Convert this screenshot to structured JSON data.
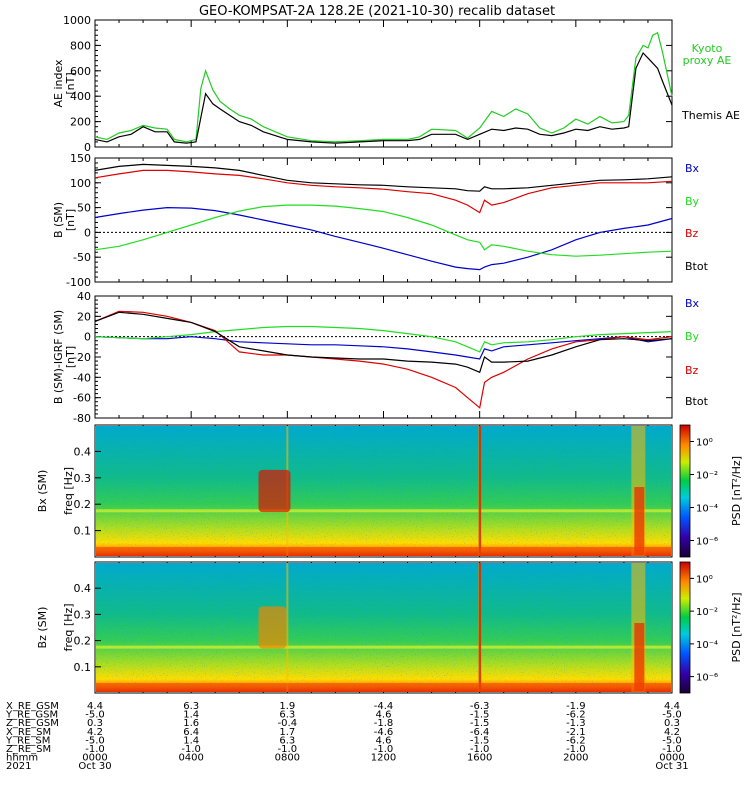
{
  "title": "GEO-KOMPSAT-2A 128.2E (2021-10-30) recalib dataset",
  "colors": {
    "bx": "#0000cc",
    "by": "#22dd22",
    "bz": "#dd0000",
    "btot": "#000000",
    "kyoto": "#22cc22",
    "themis": "#000000"
  },
  "ephemeris": {
    "labels": [
      "X_RE_GSM",
      "Y_RE_GSM",
      "Z_RE_GSM",
      "X_RE_SM",
      "Y_RE_SM",
      "Z_RE_SM",
      "hhmm",
      "2021"
    ],
    "rows": [
      [
        "4.4",
        "6.3",
        "1.9",
        "-4.4",
        "-6.3",
        "-1.9",
        "4.4"
      ],
      [
        "-5.0",
        "1.4",
        "6.3",
        "4.6",
        "-1.5",
        "-6.2",
        "-5.0"
      ],
      [
        "0.3",
        "1.6",
        "-0.4",
        "-1.8",
        "-1.5",
        "-1.3",
        "0.3"
      ],
      [
        "4.2",
        "6.4",
        "1.7",
        "-4.6",
        "-6.4",
        "-2.1",
        "4.2"
      ],
      [
        "-5.0",
        "1.4",
        "6.3",
        "4.6",
        "-1.5",
        "-6.2",
        "-5.0"
      ],
      [
        "-1.0",
        "-1.0",
        "-1.0",
        "-1.0",
        "-1.0",
        "-1.0",
        "-1.0"
      ],
      [
        "0000",
        "0400",
        "0800",
        "1200",
        "1600",
        "2000",
        "0000"
      ]
    ],
    "dates": [
      "Oct 30",
      "Oct 31"
    ]
  },
  "chart_data": [
    {
      "type": "line",
      "ylabel": "AE index",
      "yunit": "[nT]",
      "ylim": [
        0,
        1000
      ],
      "yticks": [
        "0",
        "200",
        "400",
        "600",
        "800",
        "1000"
      ],
      "xlim_hours": [
        0,
        24
      ],
      "series": [
        {
          "name": "Kyoto proxy AE",
          "x": [
            0,
            0.5,
            1,
            1.5,
            2,
            2.5,
            3,
            3.3,
            3.8,
            4.2,
            4.4,
            4.6,
            4.9,
            5.2,
            5.6,
            6,
            6.5,
            7,
            8,
            9,
            10,
            11,
            12,
            13,
            13.5,
            14,
            15,
            15.5,
            16,
            16.5,
            17,
            17.5,
            18,
            18.5,
            19,
            19.5,
            20,
            20.5,
            21,
            21.5,
            22,
            22.2,
            22.5,
            22.8,
            23,
            23.2,
            23.4,
            23.6,
            24
          ],
          "y": [
            80,
            60,
            110,
            130,
            170,
            150,
            140,
            60,
            40,
            60,
            460,
            600,
            450,
            360,
            300,
            250,
            220,
            160,
            80,
            50,
            40,
            50,
            60,
            60,
            80,
            140,
            130,
            70,
            150,
            280,
            240,
            300,
            260,
            150,
            110,
            150,
            220,
            180,
            240,
            190,
            200,
            250,
            700,
            800,
            780,
            880,
            900,
            750,
            400
          ]
        },
        {
          "name": "Themis AE",
          "x": [
            0,
            0.5,
            1,
            1.5,
            2,
            2.5,
            3,
            3.3,
            3.8,
            4.2,
            4.4,
            4.6,
            4.9,
            5.2,
            5.6,
            6,
            6.5,
            7,
            8,
            9,
            10,
            11,
            12,
            13,
            13.5,
            14,
            15,
            15.5,
            16,
            16.5,
            17,
            17.5,
            18,
            18.5,
            19,
            19.5,
            20,
            20.5,
            21,
            21.5,
            22,
            22.2,
            22.5,
            22.8,
            23,
            23.2,
            23.4,
            23.6,
            24
          ],
          "y": [
            60,
            40,
            80,
            100,
            160,
            120,
            120,
            40,
            30,
            40,
            230,
            420,
            340,
            300,
            250,
            200,
            170,
            120,
            60,
            40,
            30,
            40,
            50,
            50,
            60,
            100,
            100,
            60,
            100,
            140,
            130,
            150,
            140,
            100,
            90,
            110,
            140,
            130,
            160,
            140,
            150,
            160,
            620,
            740,
            700,
            660,
            620,
            520,
            330
          ]
        }
      ]
    },
    {
      "type": "line",
      "ylabel": "B (SM)",
      "yunit": "[nT]",
      "ylim": [
        -100,
        150
      ],
      "yticks": [
        "-100",
        "-50",
        "0",
        "50",
        "100",
        "150"
      ],
      "xlim_hours": [
        0,
        24
      ],
      "series": [
        {
          "name": "Bx",
          "x": [
            0,
            1,
            2,
            3,
            4,
            5,
            6,
            7,
            8,
            9,
            10,
            11,
            12,
            13,
            14,
            15,
            15.5,
            16,
            16.2,
            16.5,
            17,
            18,
            19,
            20,
            21,
            22,
            23,
            24
          ],
          "y": [
            30,
            38,
            45,
            50,
            49,
            44,
            35,
            25,
            15,
            5,
            -8,
            -20,
            -32,
            -45,
            -58,
            -70,
            -73,
            -75,
            -70,
            -65,
            -62,
            -50,
            -35,
            -15,
            0,
            8,
            15,
            28
          ]
        },
        {
          "name": "By",
          "x": [
            0,
            1,
            2,
            3,
            4,
            5,
            6,
            7,
            8,
            9,
            10,
            11,
            12,
            13,
            14,
            15,
            15.5,
            16,
            16.2,
            16.5,
            17,
            18,
            19,
            20,
            21,
            22,
            23,
            24
          ],
          "y": [
            -35,
            -28,
            -15,
            0,
            15,
            30,
            43,
            52,
            55,
            55,
            53,
            48,
            42,
            30,
            15,
            -5,
            -15,
            -20,
            -35,
            -25,
            -28,
            -38,
            -45,
            -48,
            -46,
            -43,
            -40,
            -38
          ]
        },
        {
          "name": "Bz",
          "x": [
            0,
            1,
            2,
            3,
            4,
            5,
            6,
            7,
            8,
            9,
            10,
            11,
            12,
            13,
            14,
            15,
            15.5,
            16,
            16.2,
            16.5,
            17,
            18,
            19,
            20,
            21,
            22,
            23,
            24
          ],
          "y": [
            110,
            118,
            125,
            125,
            122,
            118,
            115,
            108,
            100,
            95,
            92,
            90,
            87,
            82,
            78,
            65,
            55,
            40,
            65,
            55,
            60,
            78,
            90,
            95,
            100,
            100,
            100,
            103
          ]
        },
        {
          "name": "Btot",
          "x": [
            0,
            1,
            2,
            3,
            4,
            5,
            6,
            7,
            8,
            9,
            10,
            11,
            12,
            13,
            14,
            15,
            15.5,
            16,
            16.2,
            16.5,
            17,
            18,
            19,
            20,
            21,
            22,
            23,
            24
          ],
          "y": [
            125,
            133,
            137,
            135,
            133,
            130,
            125,
            115,
            105,
            100,
            98,
            96,
            95,
            92,
            90,
            88,
            84,
            83,
            92,
            88,
            88,
            90,
            95,
            100,
            105,
            106,
            108,
            112
          ]
        }
      ]
    },
    {
      "type": "line",
      "ylabel": "B (SM)-IGRF (SM)",
      "yunit": "[nT]",
      "ylim": [
        -80,
        40
      ],
      "yticks": [
        "-80",
        "-60",
        "-40",
        "-20",
        "0",
        "20",
        "40"
      ],
      "xlim_hours": [
        0,
        24
      ],
      "series": [
        {
          "name": "Bx",
          "x": [
            0,
            1,
            2,
            3,
            4,
            5,
            6,
            7,
            8,
            9,
            10,
            11,
            12,
            13,
            14,
            15,
            15.5,
            16,
            16.2,
            16.5,
            17,
            18,
            19,
            20,
            21,
            22,
            23,
            24
          ],
          "y": [
            0,
            -1,
            -2,
            -2,
            0,
            -2,
            -5,
            -6,
            -7,
            -8,
            -8,
            -9,
            -10,
            -12,
            -15,
            -18,
            -20,
            -22,
            -12,
            -14,
            -10,
            -8,
            -6,
            -4,
            -2,
            0,
            -5,
            -2
          ]
        },
        {
          "name": "By",
          "x": [
            0,
            1,
            2,
            3,
            4,
            5,
            6,
            7,
            8,
            9,
            10,
            11,
            12,
            13,
            14,
            15,
            15.5,
            16,
            16.2,
            16.5,
            17,
            18,
            19,
            20,
            21,
            22,
            23,
            24
          ],
          "y": [
            0,
            -1,
            -2,
            0,
            2,
            5,
            7,
            9,
            10,
            10,
            9,
            8,
            6,
            3,
            0,
            -5,
            -10,
            -15,
            -5,
            -8,
            -6,
            -5,
            -3,
            0,
            2,
            3,
            4,
            5
          ]
        },
        {
          "name": "Bz",
          "x": [
            0,
            1,
            2,
            3,
            4,
            5,
            6,
            7,
            8,
            9,
            10,
            11,
            12,
            13,
            14,
            15,
            15.5,
            16,
            16.2,
            16.5,
            17,
            18,
            19,
            20,
            21,
            22,
            23,
            24
          ],
          "y": [
            15,
            25,
            24,
            20,
            14,
            6,
            -15,
            -18,
            -18,
            -20,
            -22,
            -24,
            -27,
            -32,
            -40,
            -50,
            -60,
            -70,
            -45,
            -40,
            -35,
            -22,
            -12,
            -5,
            -3,
            0,
            -3,
            0
          ]
        },
        {
          "name": "Btot",
          "x": [
            0,
            1,
            2,
            3,
            4,
            5,
            6,
            7,
            8,
            9,
            10,
            11,
            12,
            13,
            14,
            15,
            15.5,
            16,
            16.2,
            16.5,
            17,
            18,
            19,
            20,
            21,
            22,
            23,
            24
          ],
          "y": [
            15,
            24,
            22,
            18,
            14,
            5,
            -10,
            -14,
            -18,
            -20,
            -21,
            -22,
            -22,
            -24,
            -25,
            -27,
            -30,
            -35,
            -20,
            -25,
            -25,
            -24,
            -18,
            -10,
            -3,
            -2,
            -4,
            -2
          ]
        }
      ]
    },
    {
      "type": "heatmap",
      "component": "Bx (SM)",
      "ylabel": "freq [Hz]",
      "ylim": [
        0,
        0.5
      ],
      "yticks": [
        "0.1",
        "0.2",
        "0.3",
        "0.4"
      ],
      "colorbar_label": "PSD [nT²/Hz]",
      "colorbar_ticks": [
        "10⁰",
        "10⁻²",
        "10⁻⁴",
        "10⁻⁶"
      ],
      "colorbar_exponents": [
        0,
        -2,
        -4,
        -6
      ],
      "colorbar_range": [
        -7,
        1
      ]
    },
    {
      "type": "heatmap",
      "component": "Bz (SM)",
      "ylabel": "freq [Hz]",
      "ylim": [
        0,
        0.5
      ],
      "yticks": [
        "0.1",
        "0.2",
        "0.3",
        "0.4"
      ],
      "colorbar_label": "PSD [nT²/Hz]",
      "colorbar_ticks": [
        "10⁰",
        "10⁻²",
        "10⁻⁴",
        "10⁻⁶"
      ],
      "colorbar_exponents": [
        0,
        -2,
        -4,
        -6
      ],
      "colorbar_range": [
        -7,
        1
      ]
    }
  ]
}
